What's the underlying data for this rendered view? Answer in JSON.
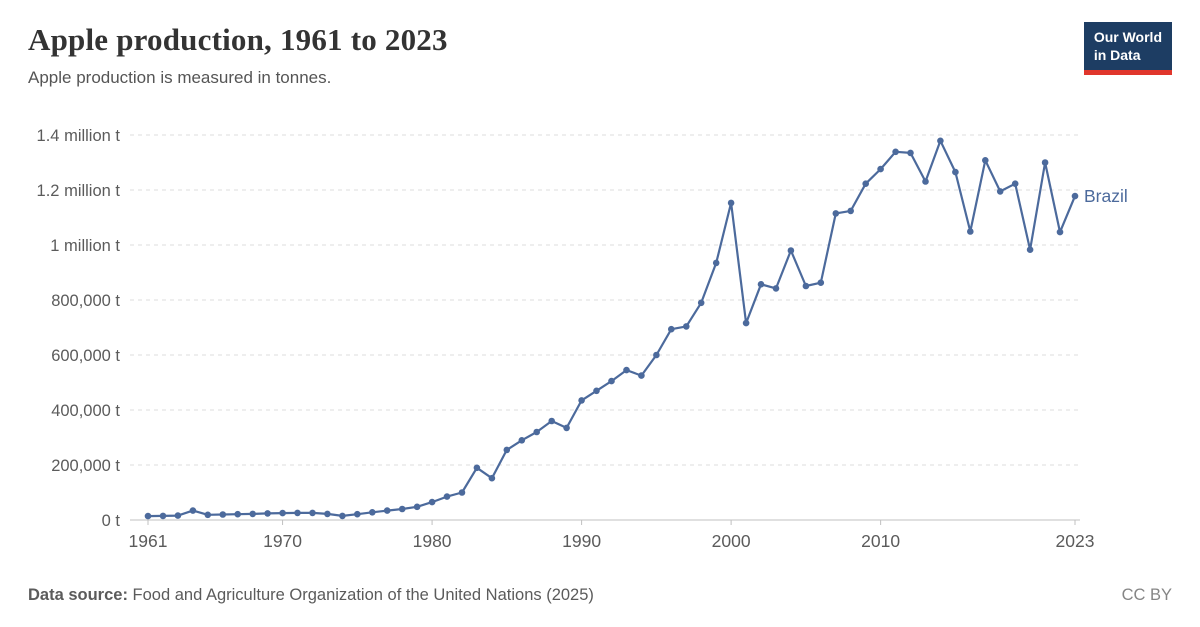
{
  "header": {
    "title": "Apple production, 1961 to 2023",
    "subtitle": "Apple production is measured in tonnes.",
    "logo": {
      "line1": "Our World",
      "line2": "in Data"
    }
  },
  "footer": {
    "source_label": "Data source:",
    "source_text": "Food and Agriculture Organization of the United Nations (2025)",
    "license": "CC BY"
  },
  "colors": {
    "line": "#4C6A9C",
    "grid": "#dddddd",
    "axis": "#c0c0c0",
    "tick_text": "#5b5b5b",
    "logo_bg": "#1d3d63",
    "logo_accent": "#e0362c"
  },
  "chart_data": {
    "type": "line",
    "title": "Apple production, 1961 to 2023",
    "unit": "tonnes",
    "xlabel": "",
    "ylabel": "",
    "xlim": [
      1961,
      2023
    ],
    "ylim": [
      0,
      1400000
    ],
    "grid": "horizontal-dashed",
    "legend": "end-of-line-label",
    "x_ticks": [
      1961,
      1970,
      1980,
      1990,
      2000,
      2010,
      2023
    ],
    "y_ticks": [
      0,
      200000,
      400000,
      600000,
      800000,
      1000000,
      1200000,
      1400000
    ],
    "y_tick_labels": [
      "0 t",
      "200,000 t",
      "400,000 t",
      "600,000 t",
      "800,000 t",
      "1 million t",
      "1.2 million t",
      "1.4 million t"
    ],
    "series": [
      {
        "name": "Brazil",
        "x": [
          1961,
          1962,
          1963,
          1964,
          1965,
          1966,
          1967,
          1968,
          1969,
          1970,
          1971,
          1972,
          1973,
          1974,
          1975,
          1976,
          1977,
          1978,
          1979,
          1980,
          1981,
          1982,
          1983,
          1984,
          1985,
          1986,
          1987,
          1988,
          1989,
          1990,
          1991,
          1992,
          1993,
          1994,
          1995,
          1996,
          1997,
          1998,
          1999,
          2000,
          2001,
          2002,
          2003,
          2004,
          2005,
          2006,
          2007,
          2008,
          2009,
          2010,
          2011,
          2012,
          2013,
          2014,
          2015,
          2016,
          2017,
          2018,
          2019,
          2020,
          2021,
          2022,
          2023
        ],
        "values": [
          14000,
          15000,
          16000,
          34000,
          19000,
          20000,
          21000,
          22000,
          24000,
          25000,
          26000,
          26000,
          22000,
          15000,
          21000,
          28000,
          34000,
          40000,
          48000,
          65000,
          85000,
          100000,
          190000,
          152000,
          255000,
          290000,
          320000,
          360000,
          335000,
          435000,
          470000,
          505000,
          545000,
          525000,
          600000,
          694000,
          704000,
          790000,
          935000,
          1153000,
          716000,
          857000,
          842000,
          980000,
          851000,
          863000,
          1115000,
          1124000,
          1223000,
          1276000,
          1339000,
          1335000,
          1231000,
          1379000,
          1265000,
          1049000,
          1308000,
          1195000,
          1223000,
          983000,
          1300000,
          1047000,
          1178000
        ]
      }
    ]
  }
}
